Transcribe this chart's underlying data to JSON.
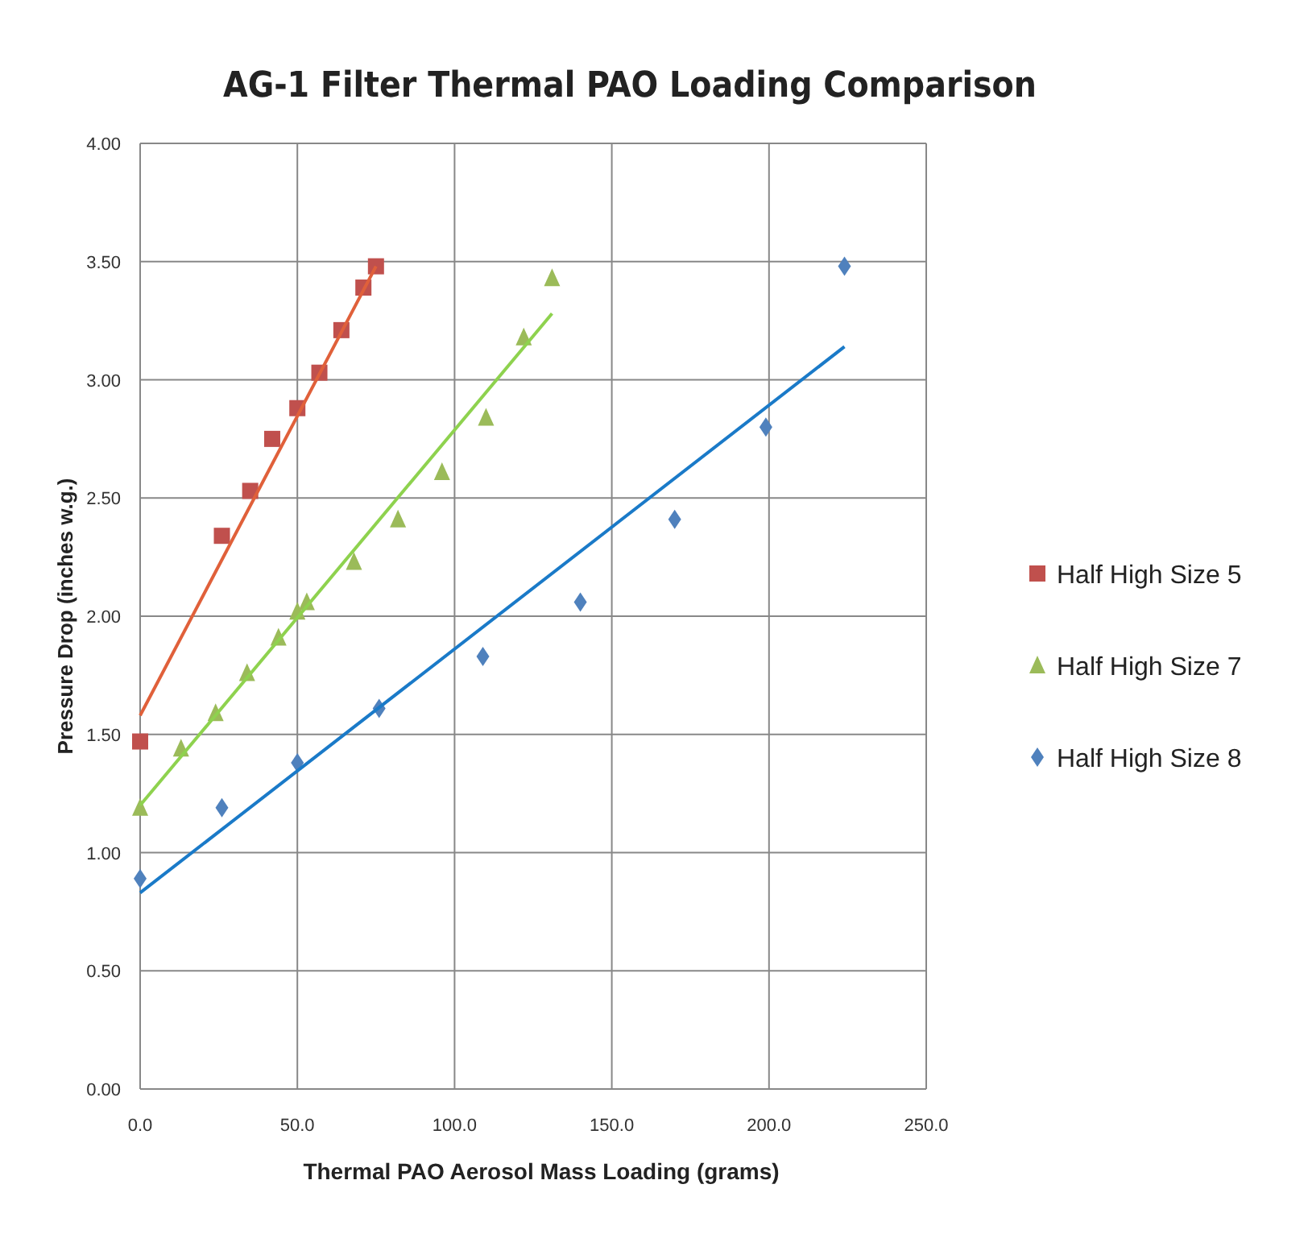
{
  "chart_data": {
    "type": "scatter",
    "title": "AG-1 Filter Thermal PAO Loading Comparison",
    "xlabel": "Thermal PAO Aerosol Mass Loading (grams)",
    "ylabel": "Pressure Drop (inches w.g.)",
    "xlim": [
      0,
      250
    ],
    "xticks": [
      {
        "value": 0,
        "label": "0.0"
      },
      {
        "value": 50,
        "label": "50.0"
      },
      {
        "value": 100,
        "label": "100.0"
      },
      {
        "value": 150,
        "label": "150.0"
      },
      {
        "value": 200,
        "label": "200.0"
      },
      {
        "value": 250,
        "label": "250.0"
      }
    ],
    "ylim": [
      0,
      4
    ],
    "yticks": [
      {
        "value": 0,
        "label": "0.00"
      },
      {
        "value": 0.5,
        "label": "0.50"
      },
      {
        "value": 1,
        "label": "1.00"
      },
      {
        "value": 1.5,
        "label": "1.50"
      },
      {
        "value": 2,
        "label": "2.00"
      },
      {
        "value": 2.5,
        "label": "2.50"
      },
      {
        "value": 3,
        "label": "3.00"
      },
      {
        "value": 3.5,
        "label": "3.50"
      },
      {
        "value": 4,
        "label": "4.00"
      }
    ],
    "grid": true,
    "legend": "right",
    "series": [
      {
        "name": "Half High Size 5",
        "marker": "square",
        "color": "#c0504d",
        "x": [
          0,
          26,
          35,
          42,
          50,
          57,
          64,
          71,
          75
        ],
        "values": [
          1.47,
          2.34,
          2.53,
          2.75,
          2.88,
          3.03,
          3.21,
          3.39,
          3.48
        ]
      },
      {
        "name": "Half High Size 7",
        "marker": "triangle",
        "color": "#9bbb59",
        "x": [
          0,
          13,
          24,
          34,
          44,
          50,
          53,
          68,
          82,
          96,
          110,
          122,
          131
        ],
        "values": [
          1.19,
          1.44,
          1.59,
          1.76,
          1.91,
          2.02,
          2.06,
          2.23,
          2.41,
          2.61,
          2.84,
          3.18,
          3.43
        ]
      },
      {
        "name": "Half High Size 8",
        "marker": "diamond",
        "color": "#4f81bd",
        "x": [
          0,
          26,
          50,
          76,
          109,
          140,
          170,
          199,
          224
        ],
        "values": [
          0.89,
          1.19,
          1.38,
          1.61,
          1.83,
          2.06,
          2.41,
          2.8,
          3.48
        ]
      },
      {
        "type": "line",
        "marker": "none",
        "color": "#e0603a",
        "x": [
          0,
          75
        ],
        "values": [
          1.58,
          3.48
        ]
      },
      {
        "type": "line",
        "marker": "none",
        "color": "#8ed24e",
        "x": [
          0,
          131
        ],
        "values": [
          1.2,
          3.28
        ]
      },
      {
        "type": "line",
        "marker": "none",
        "color": "#1a7ac8",
        "x": [
          0,
          224
        ],
        "values": [
          0.83,
          3.14
        ]
      }
    ]
  }
}
